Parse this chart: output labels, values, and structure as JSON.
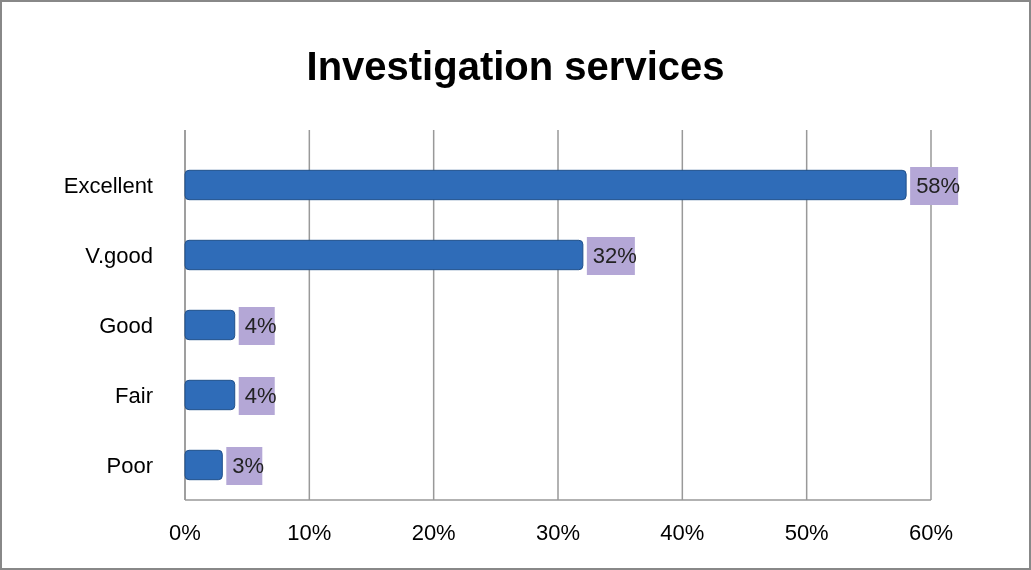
{
  "chart_data": {
    "type": "bar",
    "orientation": "horizontal",
    "title": "Investigation services",
    "categories": [
      "Excellent",
      "V.good",
      "Good",
      "Fair",
      "Poor"
    ],
    "values": [
      58,
      32,
      4,
      4,
      3
    ],
    "value_labels": [
      "58%",
      "32%",
      "4%",
      "4%",
      "3%"
    ],
    "color": "#2f6cb8",
    "xlim": [
      0,
      60
    ],
    "xticks": [
      {
        "value": 0,
        "label": "0%"
      },
      {
        "value": 10,
        "label": "10%"
      },
      {
        "value": 20,
        "label": "20%"
      },
      {
        "value": 30,
        "label": "30%"
      },
      {
        "value": 40,
        "label": "40%"
      },
      {
        "value": 50,
        "label": "50%"
      },
      {
        "value": 60,
        "label": "60%"
      }
    ],
    "grid": "x"
  }
}
